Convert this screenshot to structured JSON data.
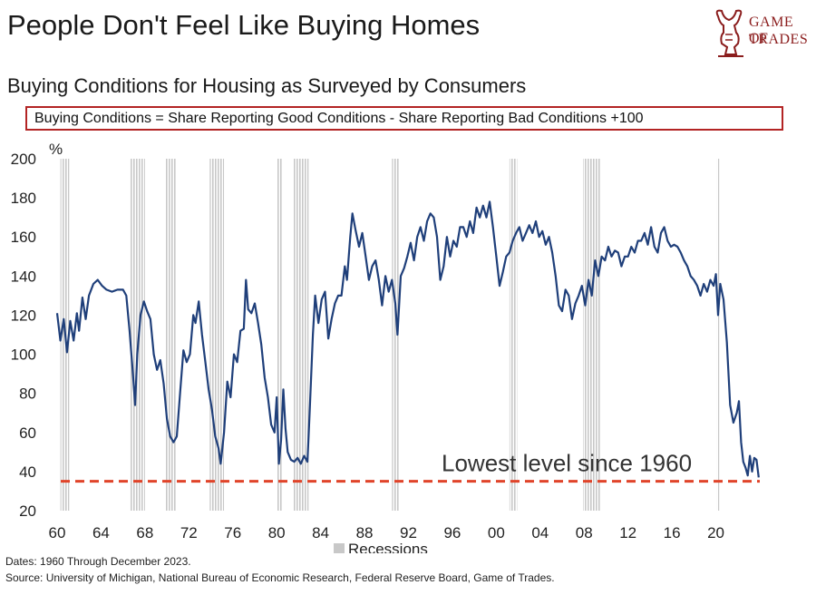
{
  "header": {
    "title": "People Don't Feel Like Buying Homes",
    "subtitle": "Buying Conditions for Housing as Surveyed by Consumers",
    "formula": "Buying Conditions = Share Reporting Good Conditions - Share Reporting Bad Conditions +100"
  },
  "logo": {
    "line1": "GAME OF",
    "line2": "TRADES",
    "color": "#8b1d1d"
  },
  "footer": {
    "dates": "Dates: 1960 Through December 2023.",
    "source": "Source: University of Michigan, National Bureau of Economic Research, Federal Reserve Board, Game of Trades."
  },
  "chart_data": {
    "type": "line",
    "ylabel": "%",
    "ylim": [
      20,
      200
    ],
    "xlim": [
      1960,
      2024
    ],
    "yticks": [
      20,
      40,
      60,
      80,
      100,
      120,
      140,
      160,
      180,
      200
    ],
    "xticks": [
      {
        "value": 1960,
        "label": "60"
      },
      {
        "value": 1964,
        "label": "64"
      },
      {
        "value": 1968,
        "label": "68"
      },
      {
        "value": 1972,
        "label": "72"
      },
      {
        "value": 1976,
        "label": "76"
      },
      {
        "value": 1980,
        "label": "80"
      },
      {
        "value": 1984,
        "label": "84"
      },
      {
        "value": 1988,
        "label": "88"
      },
      {
        "value": 1992,
        "label": "92"
      },
      {
        "value": 1996,
        "label": "96"
      },
      {
        "value": 2000,
        "label": "00"
      },
      {
        "value": 2004,
        "label": "04"
      },
      {
        "value": 2008,
        "label": "08"
      },
      {
        "value": 2012,
        "label": "12"
      },
      {
        "value": 2016,
        "label": "16"
      },
      {
        "value": 2020,
        "label": "20"
      }
    ],
    "line_color": "#1f3f7a",
    "recession_color": "#c8c8c8",
    "recessions": [
      [
        1960.3,
        1961.1
      ],
      [
        1966.6,
        1968.0
      ],
      [
        1969.9,
        1970.9
      ],
      [
        1973.9,
        1975.2
      ],
      [
        1980.0,
        1980.5
      ],
      [
        1981.5,
        1982.9
      ],
      [
        1990.5,
        1991.2
      ],
      [
        2001.2,
        2001.9
      ],
      [
        2007.9,
        2009.5
      ],
      [
        2020.1,
        2020.3
      ]
    ],
    "series": [
      {
        "name": "Buying Conditions",
        "points": [
          [
            1960.0,
            121
          ],
          [
            1960.3,
            107
          ],
          [
            1960.6,
            118
          ],
          [
            1960.9,
            101
          ],
          [
            1961.2,
            117
          ],
          [
            1961.5,
            107
          ],
          [
            1961.8,
            121
          ],
          [
            1962.0,
            112
          ],
          [
            1962.3,
            129
          ],
          [
            1962.6,
            118
          ],
          [
            1962.9,
            130
          ],
          [
            1963.3,
            136
          ],
          [
            1963.7,
            138
          ],
          [
            1964.1,
            135
          ],
          [
            1964.5,
            133
          ],
          [
            1965.0,
            132
          ],
          [
            1965.5,
            133
          ],
          [
            1966.0,
            133
          ],
          [
            1966.3,
            130
          ],
          [
            1966.6,
            112
          ],
          [
            1966.9,
            90
          ],
          [
            1967.1,
            74
          ],
          [
            1967.3,
            100
          ],
          [
            1967.6,
            120
          ],
          [
            1967.9,
            127
          ],
          [
            1968.2,
            122
          ],
          [
            1968.5,
            118
          ],
          [
            1968.8,
            100
          ],
          [
            1969.1,
            92
          ],
          [
            1969.4,
            97
          ],
          [
            1969.7,
            85
          ],
          [
            1970.0,
            67
          ],
          [
            1970.3,
            58
          ],
          [
            1970.6,
            55
          ],
          [
            1970.9,
            58
          ],
          [
            1971.2,
            80
          ],
          [
            1971.5,
            102
          ],
          [
            1971.8,
            96
          ],
          [
            1972.1,
            100
          ],
          [
            1972.4,
            120
          ],
          [
            1972.6,
            116
          ],
          [
            1972.9,
            127
          ],
          [
            1973.2,
            110
          ],
          [
            1973.5,
            96
          ],
          [
            1973.8,
            82
          ],
          [
            1974.1,
            72
          ],
          [
            1974.4,
            58
          ],
          [
            1974.7,
            52
          ],
          [
            1974.9,
            44
          ],
          [
            1975.2,
            60
          ],
          [
            1975.5,
            86
          ],
          [
            1975.8,
            78
          ],
          [
            1976.1,
            100
          ],
          [
            1976.4,
            96
          ],
          [
            1976.7,
            112
          ],
          [
            1977.0,
            113
          ],
          [
            1977.2,
            138
          ],
          [
            1977.4,
            123
          ],
          [
            1977.7,
            121
          ],
          [
            1978.0,
            126
          ],
          [
            1978.3,
            116
          ],
          [
            1978.6,
            105
          ],
          [
            1978.9,
            88
          ],
          [
            1979.2,
            78
          ],
          [
            1979.5,
            64
          ],
          [
            1979.8,
            60
          ],
          [
            1980.0,
            78
          ],
          [
            1980.2,
            44
          ],
          [
            1980.4,
            56
          ],
          [
            1980.6,
            82
          ],
          [
            1980.8,
            62
          ],
          [
            1981.0,
            50
          ],
          [
            1981.3,
            46
          ],
          [
            1981.6,
            45
          ],
          [
            1981.9,
            47
          ],
          [
            1982.2,
            44
          ],
          [
            1982.5,
            48
          ],
          [
            1982.8,
            45
          ],
          [
            1983.0,
            70
          ],
          [
            1983.3,
            110
          ],
          [
            1983.5,
            130
          ],
          [
            1983.8,
            116
          ],
          [
            1984.1,
            128
          ],
          [
            1984.4,
            132
          ],
          [
            1984.7,
            108
          ],
          [
            1985.0,
            118
          ],
          [
            1985.3,
            126
          ],
          [
            1985.6,
            130
          ],
          [
            1985.9,
            130
          ],
          [
            1986.2,
            145
          ],
          [
            1986.4,
            138
          ],
          [
            1986.7,
            160
          ],
          [
            1986.9,
            172
          ],
          [
            1987.2,
            163
          ],
          [
            1987.5,
            155
          ],
          [
            1987.8,
            162
          ],
          [
            1988.1,
            150
          ],
          [
            1988.4,
            138
          ],
          [
            1988.7,
            145
          ],
          [
            1989.0,
            148
          ],
          [
            1989.3,
            138
          ],
          [
            1989.6,
            125
          ],
          [
            1989.9,
            140
          ],
          [
            1990.2,
            132
          ],
          [
            1990.5,
            138
          ],
          [
            1990.8,
            126
          ],
          [
            1991.0,
            110
          ],
          [
            1991.3,
            140
          ],
          [
            1991.6,
            144
          ],
          [
            1991.9,
            150
          ],
          [
            1992.2,
            157
          ],
          [
            1992.5,
            148
          ],
          [
            1992.8,
            160
          ],
          [
            1993.1,
            165
          ],
          [
            1993.4,
            158
          ],
          [
            1993.7,
            168
          ],
          [
            1994.0,
            172
          ],
          [
            1994.3,
            170
          ],
          [
            1994.6,
            160
          ],
          [
            1994.9,
            138
          ],
          [
            1995.2,
            145
          ],
          [
            1995.5,
            160
          ],
          [
            1995.8,
            150
          ],
          [
            1996.1,
            158
          ],
          [
            1996.4,
            155
          ],
          [
            1996.7,
            165
          ],
          [
            1997.0,
            165
          ],
          [
            1997.3,
            160
          ],
          [
            1997.6,
            168
          ],
          [
            1997.9,
            162
          ],
          [
            1998.2,
            175
          ],
          [
            1998.5,
            170
          ],
          [
            1998.8,
            176
          ],
          [
            1999.1,
            170
          ],
          [
            1999.4,
            178
          ],
          [
            1999.7,
            165
          ],
          [
            2000.0,
            150
          ],
          [
            2000.3,
            135
          ],
          [
            2000.6,
            142
          ],
          [
            2000.9,
            150
          ],
          [
            2001.2,
            152
          ],
          [
            2001.5,
            158
          ],
          [
            2001.8,
            162
          ],
          [
            2002.1,
            165
          ],
          [
            2002.4,
            158
          ],
          [
            2002.7,
            162
          ],
          [
            2003.0,
            166
          ],
          [
            2003.3,
            162
          ],
          [
            2003.6,
            168
          ],
          [
            2003.9,
            160
          ],
          [
            2004.2,
            163
          ],
          [
            2004.5,
            156
          ],
          [
            2004.8,
            160
          ],
          [
            2005.1,
            152
          ],
          [
            2005.4,
            140
          ],
          [
            2005.7,
            125
          ],
          [
            2006.0,
            122
          ],
          [
            2006.3,
            133
          ],
          [
            2006.6,
            130
          ],
          [
            2006.9,
            118
          ],
          [
            2007.2,
            126
          ],
          [
            2007.5,
            130
          ],
          [
            2007.8,
            135
          ],
          [
            2008.1,
            125
          ],
          [
            2008.4,
            138
          ],
          [
            2008.7,
            130
          ],
          [
            2009.0,
            148
          ],
          [
            2009.3,
            140
          ],
          [
            2009.6,
            150
          ],
          [
            2009.9,
            148
          ],
          [
            2010.2,
            155
          ],
          [
            2010.5,
            150
          ],
          [
            2010.8,
            153
          ],
          [
            2011.1,
            152
          ],
          [
            2011.4,
            145
          ],
          [
            2011.7,
            150
          ],
          [
            2012.0,
            150
          ],
          [
            2012.3,
            155
          ],
          [
            2012.6,
            152
          ],
          [
            2012.9,
            158
          ],
          [
            2013.2,
            158
          ],
          [
            2013.5,
            162
          ],
          [
            2013.8,
            156
          ],
          [
            2014.1,
            165
          ],
          [
            2014.4,
            155
          ],
          [
            2014.7,
            152
          ],
          [
            2015.0,
            162
          ],
          [
            2015.3,
            165
          ],
          [
            2015.6,
            158
          ],
          [
            2015.9,
            155
          ],
          [
            2016.2,
            156
          ],
          [
            2016.5,
            155
          ],
          [
            2016.8,
            152
          ],
          [
            2017.1,
            148
          ],
          [
            2017.4,
            145
          ],
          [
            2017.7,
            140
          ],
          [
            2018.0,
            138
          ],
          [
            2018.3,
            135
          ],
          [
            2018.6,
            130
          ],
          [
            2018.9,
            136
          ],
          [
            2019.2,
            132
          ],
          [
            2019.5,
            138
          ],
          [
            2019.8,
            135
          ],
          [
            2020.0,
            141
          ],
          [
            2020.2,
            120
          ],
          [
            2020.4,
            136
          ],
          [
            2020.7,
            128
          ],
          [
            2021.0,
            106
          ],
          [
            2021.3,
            74
          ],
          [
            2021.6,
            65
          ],
          [
            2021.9,
            70
          ],
          [
            2022.1,
            76
          ],
          [
            2022.3,
            55
          ],
          [
            2022.5,
            45
          ],
          [
            2022.7,
            42
          ],
          [
            2022.9,
            38
          ],
          [
            2023.1,
            48
          ],
          [
            2023.3,
            40
          ],
          [
            2023.5,
            47
          ],
          [
            2023.7,
            46
          ],
          [
            2023.9,
            37
          ]
        ]
      }
    ],
    "reference_line": {
      "value": 35,
      "color": "#e0442a",
      "annotation": "Lowest level since 1960"
    },
    "legend": {
      "label": "Recessions",
      "placement": "bottom"
    }
  }
}
